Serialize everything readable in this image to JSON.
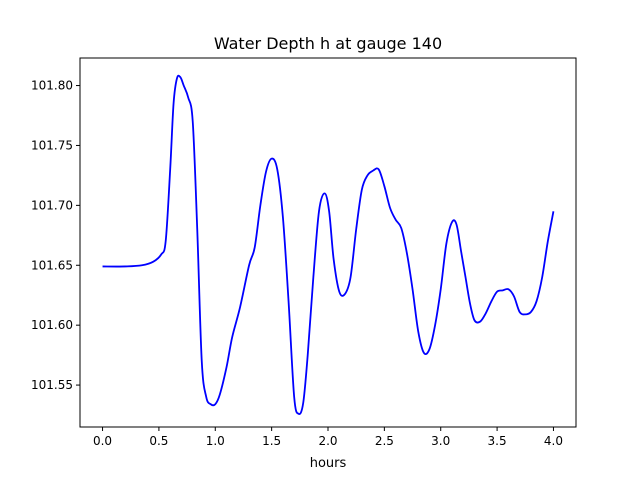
{
  "chart_data": {
    "type": "line",
    "title": "Water Depth h at gauge 140",
    "xlabel": "hours",
    "ylabel": "",
    "xlim": [
      -0.2,
      4.2
    ],
    "ylim": [
      101.515,
      101.823
    ],
    "xticks": [
      0.0,
      0.5,
      1.0,
      1.5,
      2.0,
      2.5,
      3.0,
      3.5,
      4.0
    ],
    "xtick_labels": [
      "0.0",
      "0.5",
      "1.0",
      "1.5",
      "2.0",
      "2.5",
      "3.0",
      "3.5",
      "4.0"
    ],
    "yticks": [
      101.55,
      101.6,
      101.65,
      101.7,
      101.75,
      101.8
    ],
    "ytick_labels": [
      "101.55",
      "101.60",
      "101.65",
      "101.70",
      "101.75",
      "101.80"
    ],
    "grid": false,
    "legend": false,
    "series": [
      {
        "color": "#0000ff",
        "x": [
          0.0,
          0.2,
          0.35,
          0.45,
          0.52,
          0.56,
          0.6,
          0.63,
          0.66,
          0.69,
          0.72,
          0.76,
          0.8,
          0.84,
          0.88,
          0.92,
          0.96,
          1.0,
          1.04,
          1.1,
          1.15,
          1.22,
          1.3,
          1.35,
          1.4,
          1.45,
          1.5,
          1.55,
          1.6,
          1.65,
          1.7,
          1.74,
          1.78,
          1.82,
          1.87,
          1.92,
          1.97,
          2.01,
          2.05,
          2.1,
          2.15,
          2.2,
          2.25,
          2.3,
          2.35,
          2.4,
          2.45,
          2.5,
          2.55,
          2.6,
          2.65,
          2.7,
          2.75,
          2.8,
          2.85,
          2.9,
          2.95,
          3.0,
          3.05,
          3.1,
          3.14,
          3.18,
          3.22,
          3.26,
          3.3,
          3.35,
          3.4,
          3.45,
          3.5,
          3.55,
          3.6,
          3.65,
          3.7,
          3.75,
          3.8,
          3.85,
          3.9,
          3.95,
          4.0
        ],
        "values": [
          101.649,
          101.649,
          101.65,
          101.653,
          101.659,
          101.67,
          101.73,
          101.785,
          101.806,
          101.807,
          101.8,
          101.79,
          101.77,
          101.68,
          101.57,
          101.54,
          101.534,
          101.534,
          101.542,
          101.565,
          101.59,
          101.615,
          101.65,
          101.665,
          101.7,
          101.728,
          101.739,
          101.73,
          101.69,
          101.62,
          101.54,
          101.526,
          101.535,
          101.575,
          101.64,
          101.695,
          101.71,
          101.695,
          101.655,
          101.628,
          101.626,
          101.64,
          101.68,
          101.713,
          101.725,
          101.729,
          101.73,
          101.716,
          101.698,
          101.688,
          101.681,
          101.66,
          101.63,
          101.595,
          101.577,
          101.58,
          101.6,
          101.63,
          101.668,
          101.686,
          101.684,
          101.662,
          101.64,
          101.618,
          101.604,
          101.603,
          101.61,
          101.62,
          101.628,
          101.629,
          101.63,
          101.624,
          101.611,
          101.609,
          101.611,
          101.62,
          101.64,
          101.67,
          101.695
        ]
      }
    ]
  }
}
